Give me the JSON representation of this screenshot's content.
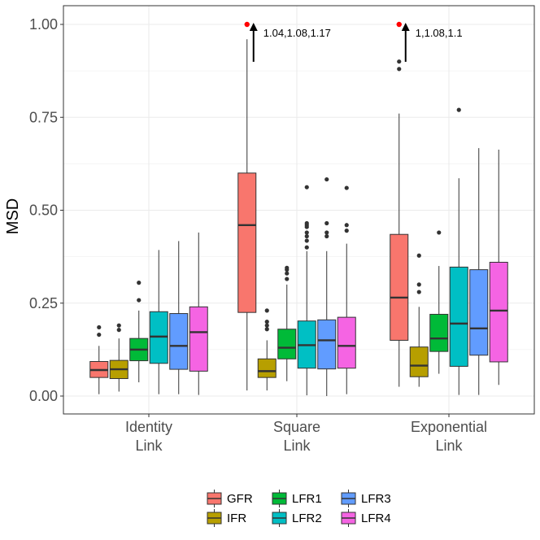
{
  "chart_data": {
    "type": "boxplot",
    "title": "",
    "xlabel": "",
    "ylabel": "MSD",
    "ylim": [
      -0.05,
      1.05
    ],
    "yticks": [
      0.0,
      0.25,
      0.5,
      0.75,
      1.0
    ],
    "ytick_labels": [
      "0.00",
      "0.25",
      "0.50",
      "0.75",
      "1.00"
    ],
    "grid": true,
    "legend_position": "bottom",
    "categories": [
      {
        "line1": "Identity",
        "line2": "Link"
      },
      {
        "line1": "Square",
        "line2": "Link"
      },
      {
        "line1": "Exponential",
        "line2": "Link"
      }
    ],
    "legend_order": [
      "GFR",
      "IFR",
      "LFR1",
      "LFR2",
      "LFR3",
      "LFR4"
    ],
    "series": [
      {
        "name": "GFR",
        "color": "#F8766D",
        "boxes": [
          {
            "lower_whisker": 0.005,
            "q1": 0.05,
            "median": 0.07,
            "q3": 0.093,
            "upper_whisker": 0.135,
            "outliers": [
              0.165,
              0.185
            ]
          },
          {
            "lower_whisker": 0.015,
            "q1": 0.225,
            "median": 0.46,
            "q3": 0.6,
            "upper_whisker": 0.96,
            "outliers": [],
            "capped_value": 1.0,
            "capped_label": "1.04,1.08,1.17"
          },
          {
            "lower_whisker": 0.025,
            "q1": 0.15,
            "median": 0.265,
            "q3": 0.435,
            "upper_whisker": 0.76,
            "outliers": [
              0.88,
              0.9
            ],
            "capped_value": 1.0,
            "capped_label": "1,1.08,1.1"
          }
        ]
      },
      {
        "name": "IFR",
        "color": "#B79F00",
        "boxes": [
          {
            "lower_whisker": 0.012,
            "q1": 0.047,
            "median": 0.072,
            "q3": 0.096,
            "upper_whisker": 0.155,
            "outliers": [
              0.178,
              0.19
            ]
          },
          {
            "lower_whisker": 0.015,
            "q1": 0.05,
            "median": 0.067,
            "q3": 0.1,
            "upper_whisker": 0.15,
            "outliers": [
              0.18,
              0.19,
              0.2,
              0.23
            ]
          },
          {
            "lower_whisker": 0.025,
            "q1": 0.052,
            "median": 0.082,
            "q3": 0.132,
            "upper_whisker": 0.24,
            "outliers": [
              0.28,
              0.3,
              0.378
            ]
          }
        ]
      },
      {
        "name": "LFR1",
        "color": "#00BA38",
        "boxes": [
          {
            "lower_whisker": 0.037,
            "q1": 0.095,
            "median": 0.125,
            "q3": 0.155,
            "upper_whisker": 0.23,
            "outliers": [
              0.258,
              0.305
            ]
          },
          {
            "lower_whisker": 0.04,
            "q1": 0.1,
            "median": 0.13,
            "q3": 0.18,
            "upper_whisker": 0.3,
            "outliers": [
              0.315,
              0.33,
              0.34,
              0.345
            ]
          },
          {
            "lower_whisker": 0.06,
            "q1": 0.12,
            "median": 0.155,
            "q3": 0.22,
            "upper_whisker": 0.35,
            "outliers": [
              0.44
            ]
          }
        ]
      },
      {
        "name": "LFR2",
        "color": "#00BFC4",
        "boxes": [
          {
            "lower_whisker": 0.005,
            "q1": 0.088,
            "median": 0.16,
            "q3": 0.227,
            "upper_whisker": 0.393,
            "outliers": []
          },
          {
            "lower_whisker": 0.002,
            "q1": 0.075,
            "median": 0.137,
            "q3": 0.202,
            "upper_whisker": 0.39,
            "outliers": [
              0.4,
              0.418,
              0.43,
              0.44,
              0.455,
              0.46,
              0.465,
              0.562
            ]
          },
          {
            "lower_whisker": 0.003,
            "q1": 0.08,
            "median": 0.195,
            "q3": 0.347,
            "upper_whisker": 0.586,
            "outliers": [
              0.77
            ]
          }
        ]
      },
      {
        "name": "LFR3",
        "color": "#619CFF",
        "boxes": [
          {
            "lower_whisker": 0.005,
            "q1": 0.072,
            "median": 0.135,
            "q3": 0.222,
            "upper_whisker": 0.417,
            "outliers": []
          },
          {
            "lower_whisker": 0.0,
            "q1": 0.073,
            "median": 0.15,
            "q3": 0.205,
            "upper_whisker": 0.39,
            "outliers": [
              0.43,
              0.44,
              0.465,
              0.583
            ]
          },
          {
            "lower_whisker": 0.003,
            "q1": 0.11,
            "median": 0.182,
            "q3": 0.34,
            "upper_whisker": 0.667,
            "outliers": []
          }
        ]
      },
      {
        "name": "LFR4",
        "color": "#F564E3",
        "boxes": [
          {
            "lower_whisker": 0.003,
            "q1": 0.067,
            "median": 0.172,
            "q3": 0.24,
            "upper_whisker": 0.44,
            "outliers": []
          },
          {
            "lower_whisker": 0.005,
            "q1": 0.075,
            "median": 0.135,
            "q3": 0.212,
            "upper_whisker": 0.41,
            "outliers": [
              0.445,
              0.46,
              0.56
            ]
          },
          {
            "lower_whisker": 0.03,
            "q1": 0.092,
            "median": 0.23,
            "q3": 0.36,
            "upper_whisker": 0.663,
            "outliers": []
          }
        ]
      }
    ]
  }
}
